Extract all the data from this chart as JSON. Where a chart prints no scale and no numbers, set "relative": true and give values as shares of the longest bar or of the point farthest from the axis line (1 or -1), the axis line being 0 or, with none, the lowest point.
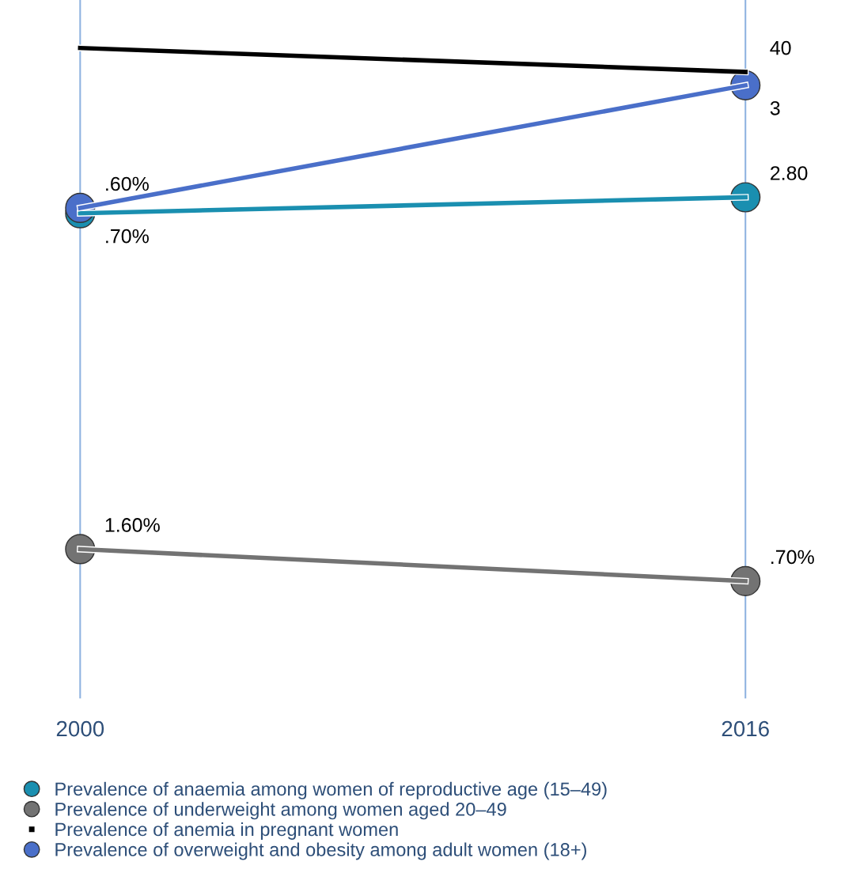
{
  "chart_data": {
    "type": "line",
    "relative": true,
    "categories": [
      "2000",
      "2016"
    ],
    "grid": "x",
    "legend": "bottom left",
    "series": [
      {
        "name": "Prevalence of anaemia among women of reproductive age (15–49)",
        "color": "#1a8fb0",
        "marker": "circle",
        "values": [
          0.69,
          0.72
        ]
      },
      {
        "name": "Prevalence of underweight among women aged 20–49",
        "color": "#737373",
        "marker": "circle",
        "values": [
          0.06,
          0
        ]
      },
      {
        "name": "Prevalence of anemia in pregnant women",
        "color": "#000000",
        "marker": "none",
        "values": [
          1.0,
          0.955
        ]
      },
      {
        "name": "Prevalence of overweight and obesity among adult women (18+)",
        "color": "#4a6fc9",
        "marker": "circle",
        "values": [
          0.7,
          0.93
        ]
      }
    ],
    "annotations": [
      {
        "text": ".70%",
        "x": "2000",
        "y": 0.69
      },
      {
        "text": "2.80",
        "x": "2016",
        "y": 0.72
      },
      {
        "text": "1.60%",
        "x": "2000",
        "y": 0.06
      },
      {
        "text": ".70%",
        "x": "2016",
        "y": 0
      },
      {
        "text": "40",
        "x": "2016",
        "y": 0.955
      },
      {
        "text": ".60%",
        "x": "2000",
        "y": 0.7
      },
      {
        "text": "3",
        "x": "2016",
        "y": 0.93
      }
    ]
  }
}
